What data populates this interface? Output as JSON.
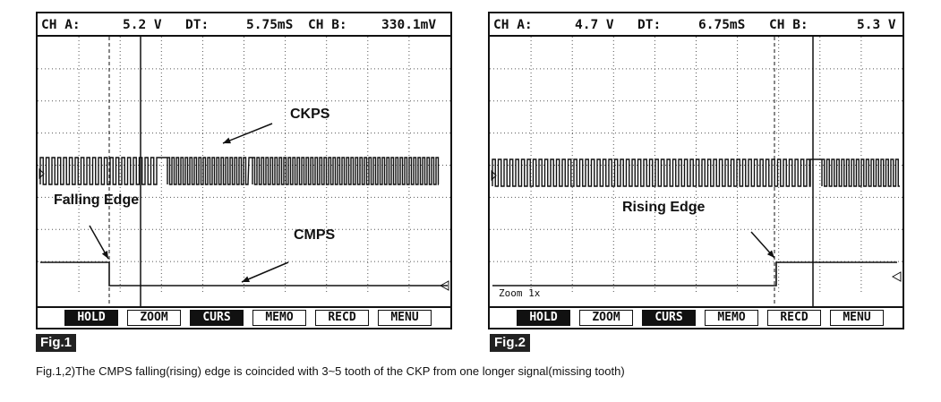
{
  "figures": [
    {
      "header": {
        "cha_label": "CH A:",
        "cha_value": "5.2 V",
        "dt_label": "DT:",
        "dt_value": "5.75mS",
        "chb_label": "CH B:",
        "chb_value": "330.1mV"
      },
      "annotations": {
        "ckps": "CKPS",
        "edge": "Falling Edge",
        "cmps": "CMPS"
      },
      "buttons": [
        "HOLD",
        "ZOOM",
        "CURS",
        "MEMO",
        "RECD",
        "MENU"
      ],
      "active_buttons": [
        "HOLD",
        "CURS"
      ],
      "tag": "Fig.1"
    },
    {
      "header": {
        "cha_label": "CH A:",
        "cha_value": "4.7 V",
        "dt_label": "DT:",
        "dt_value": "6.75mS",
        "chb_label": "CH B:",
        "chb_value": "5.3 V"
      },
      "annotations": {
        "edge": "Rising Edge",
        "zoom": "Zoom 1x"
      },
      "buttons": [
        "HOLD",
        "ZOOM",
        "CURS",
        "MEMO",
        "RECD",
        "MENU"
      ],
      "active_buttons": [
        "HOLD",
        "CURS"
      ],
      "tag": "Fig.2"
    }
  ],
  "caption": "Fig.1,2)The CMPS falling(rising) edge is coincided with 3~5 tooth of the CKP from one longer signal(missing tooth)",
  "colors": {
    "ink": "#111111",
    "tag_bg": "#222222",
    "background": "#ffffff"
  }
}
